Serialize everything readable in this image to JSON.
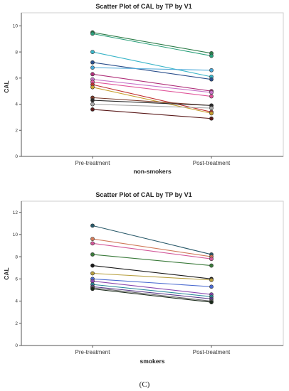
{
  "caption": "(C)",
  "chart_data": [
    {
      "type": "line",
      "title": "Scatter Plot of CAL by TP by V1",
      "xlabel": "non-smokers",
      "ylabel": "CAL",
      "categories": [
        "Pre-treatment",
        "Post-treatment"
      ],
      "ylim": [
        0,
        11
      ],
      "yticks": [
        0,
        2,
        4,
        6,
        8,
        10
      ],
      "grid": false,
      "series": [
        {
          "color": "#2e7d4a",
          "values": [
            9.5,
            7.9
          ]
        },
        {
          "color": "#2aa07a",
          "values": [
            9.4,
            7.7
          ]
        },
        {
          "color": "#3ab5c8",
          "values": [
            8.0,
            6.1
          ]
        },
        {
          "color": "#2b4f8c",
          "values": [
            7.2,
            5.9
          ]
        },
        {
          "color": "#4aa8d8",
          "values": [
            6.8,
            6.6
          ]
        },
        {
          "color": "#b0307a",
          "values": [
            6.3,
            5.0
          ]
        },
        {
          "color": "#c873c8",
          "values": [
            5.9,
            4.9
          ]
        },
        {
          "color": "#e0559a",
          "values": [
            5.7,
            4.6
          ]
        },
        {
          "color": "#c03030",
          "values": [
            5.5,
            3.4
          ]
        },
        {
          "color": "#c8a030",
          "values": [
            5.3,
            3.3
          ]
        },
        {
          "color": "#7a3a2a",
          "values": [
            4.5,
            3.9
          ]
        },
        {
          "color": "#2a2a2a",
          "values": [
            4.3,
            3.9
          ]
        },
        {
          "color": "#aaaaaa",
          "values": [
            4.0,
            3.7
          ]
        },
        {
          "color": "#5a1a1a",
          "values": [
            3.6,
            2.9
          ]
        }
      ]
    },
    {
      "type": "line",
      "title": "Scatter Plot of CAL by TP by V1",
      "xlabel": "smokers",
      "ylabel": "CAL",
      "categories": [
        "Pre-treatment",
        "Post-treatment"
      ],
      "ylim": [
        0,
        13
      ],
      "yticks": [
        0,
        2,
        4,
        6,
        8,
        10,
        12
      ],
      "grid": false,
      "series": [
        {
          "color": "#2a5a6a",
          "values": [
            10.8,
            8.2
          ]
        },
        {
          "color": "#d07a5a",
          "values": [
            9.6,
            8.0
          ]
        },
        {
          "color": "#d35a9a",
          "values": [
            9.2,
            7.8
          ]
        },
        {
          "color": "#3a7a3a",
          "values": [
            8.2,
            7.2
          ]
        },
        {
          "color": "#1a1a1a",
          "values": [
            7.2,
            6.0
          ]
        },
        {
          "color": "#b8a040",
          "values": [
            6.5,
            5.9
          ]
        },
        {
          "color": "#4a6ad0",
          "values": [
            6.0,
            5.3
          ]
        },
        {
          "color": "#8a4ab0",
          "values": [
            5.8,
            4.6
          ]
        },
        {
          "color": "#2a8a9a",
          "values": [
            5.5,
            4.4
          ]
        },
        {
          "color": "#5a3a8a",
          "values": [
            5.3,
            4.2
          ]
        },
        {
          "color": "#6a6a6a",
          "values": [
            5.2,
            4.0
          ]
        },
        {
          "color": "#1a2a1a",
          "values": [
            5.1,
            3.9
          ]
        }
      ]
    }
  ]
}
